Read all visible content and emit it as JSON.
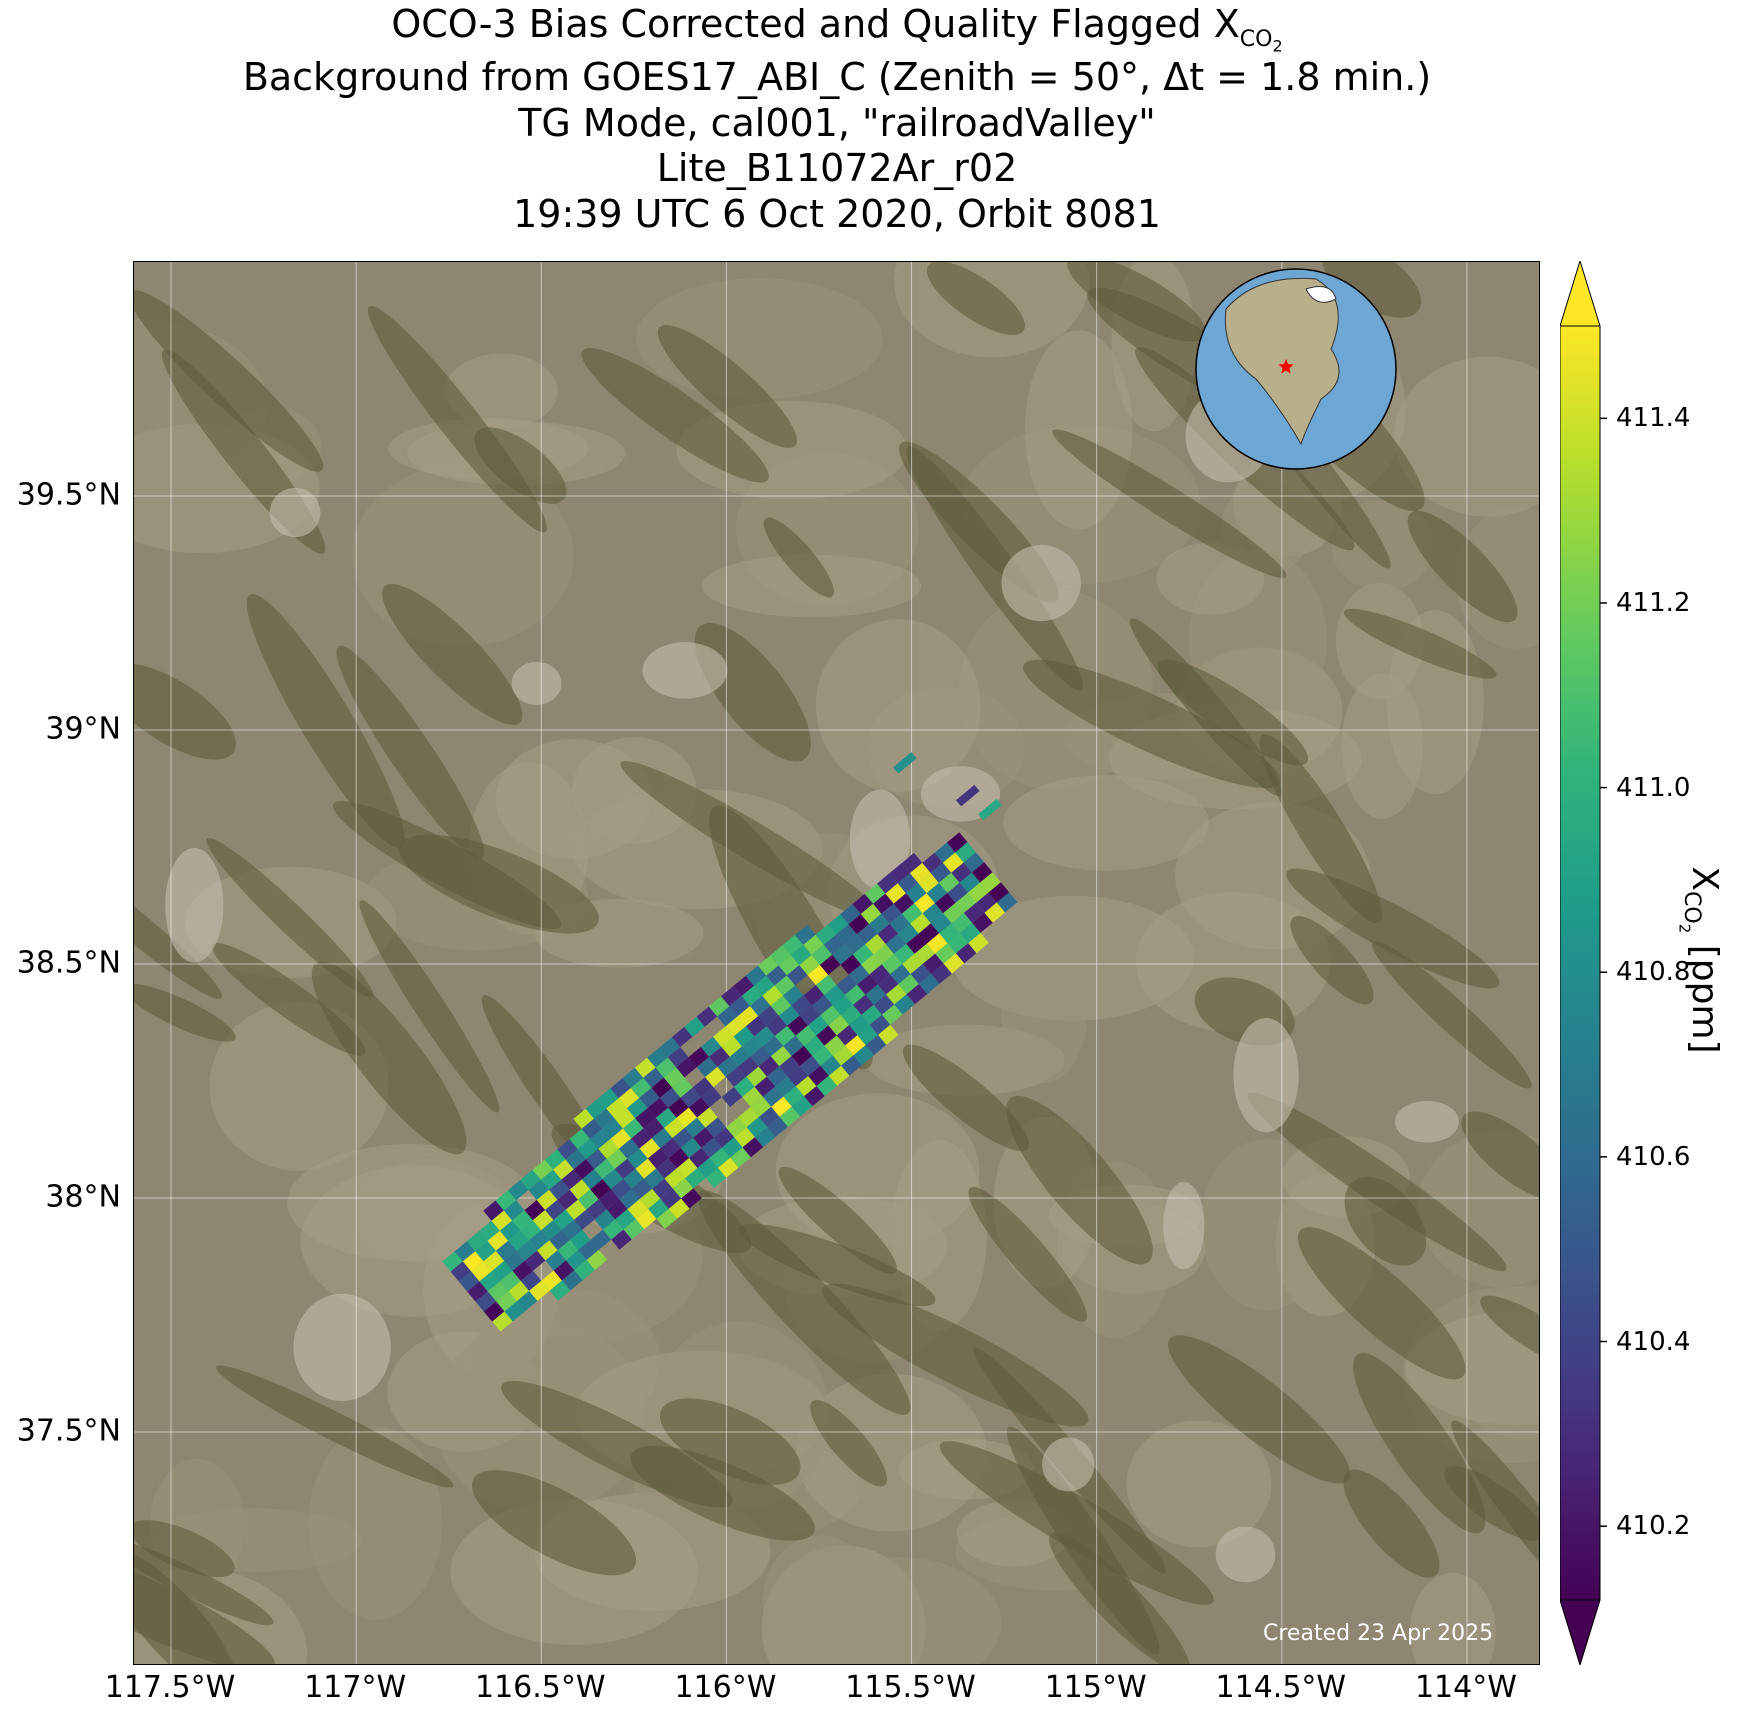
{
  "title": {
    "line1_main": "OCO-3 Bias Corrected and Quality Flagged X",
    "line1_sub": "CO",
    "line1_sub2": "2",
    "line2": "Background from GOES17_ABI_C (Zenith = 50°, Δt =  1.8 min.)",
    "line3": "TG Mode, cal001, \"railroadValley\"",
    "line4": "Lite_B11072Ar_r02",
    "line5": "19:39 UTC 6 Oct 2020, Orbit 8081"
  },
  "map": {
    "lon_range": [
      -117.6,
      -113.8
    ],
    "lat_range": [
      37.0,
      40.0
    ],
    "lat_ticks": [
      "39.5°N",
      "39°N",
      "38.5°N",
      "38°N",
      "37.5°N"
    ],
    "lat_tick_values": [
      39.5,
      39.0,
      38.5,
      38.0,
      37.5
    ],
    "lon_ticks": [
      "117.5°W",
      "117°W",
      "116.5°W",
      "116°W",
      "115.5°W",
      "115°W",
      "114.5°W",
      "114°W"
    ],
    "lon_tick_values": [
      -117.5,
      -117.0,
      -116.5,
      -116.0,
      -115.5,
      -115.0,
      -114.5,
      -114.0
    ],
    "created_label": "Created 23 Apr 2025",
    "background_color": "#8b826c",
    "inset_globe": {
      "ocean_color": "#6fa7d4",
      "land_color": "#b8b08a",
      "marker": "red-star",
      "marker_color": "#ff0000"
    }
  },
  "colorbar": {
    "title_main": "X",
    "title_sub": "CO",
    "title_sub2": "2",
    "title_unit": " [ppm]",
    "vmin": 410.12,
    "vmax": 411.5,
    "ticks": [
      "410.2",
      "410.4",
      "410.6",
      "410.8",
      "411.0",
      "411.2",
      "411.4"
    ],
    "tick_values": [
      410.2,
      410.4,
      410.6,
      410.8,
      411.0,
      411.2,
      411.4
    ],
    "colormap": "viridis",
    "extend": "both"
  }
}
